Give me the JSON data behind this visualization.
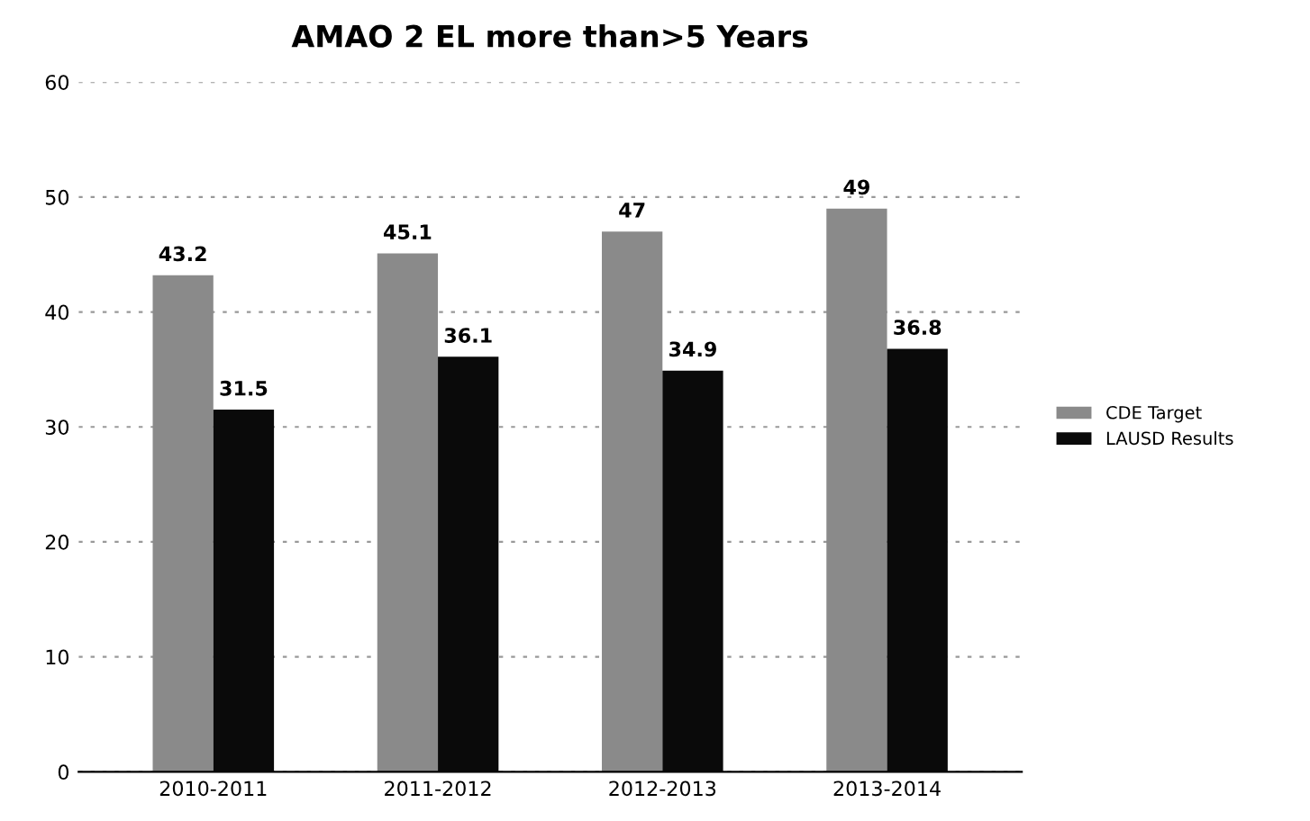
{
  "chart_data": {
    "type": "bar",
    "title": "AMAO 2 EL more than>5 Years",
    "categories": [
      "2010-2011",
      "2011-2012",
      "2012-2013",
      "2013-2014"
    ],
    "series": [
      {
        "name": "CDE Target",
        "color": "#8a8a8a",
        "values": [
          43.2,
          45.1,
          47,
          49
        ]
      },
      {
        "name": "LAUSD Results",
        "color": "#0a0a0a",
        "values": [
          31.5,
          36.1,
          34.9,
          36.8
        ]
      }
    ],
    "ylim": [
      0,
      60
    ],
    "yticks": [
      0,
      10,
      20,
      30,
      40,
      50,
      60
    ],
    "grid": "y",
    "legend": "right",
    "data_labels": true
  }
}
